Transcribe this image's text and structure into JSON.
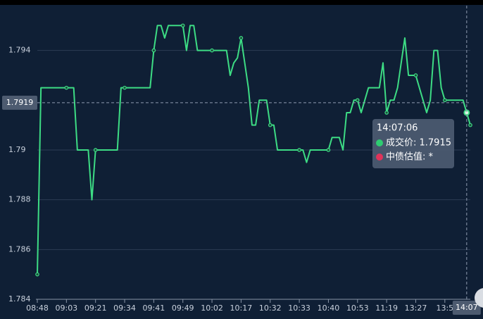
{
  "chart_data": {
    "type": "line",
    "categories": [
      "08:48",
      null,
      null,
      null,
      null,
      null,
      null,
      null,
      "09:03",
      null,
      null,
      null,
      null,
      null,
      null,
      null,
      "09:21",
      null,
      null,
      null,
      null,
      null,
      null,
      null,
      "09:34",
      null,
      null,
      null,
      null,
      null,
      null,
      null,
      "09:41",
      null,
      null,
      null,
      null,
      null,
      null,
      null,
      "09:49",
      null,
      null,
      null,
      null,
      null,
      null,
      null,
      "10:02",
      null,
      null,
      null,
      null,
      null,
      null,
      null,
      "10:17",
      null,
      null,
      null,
      null,
      null,
      null,
      null,
      "10:32",
      null,
      null,
      null,
      null,
      null,
      null,
      null,
      "10:33",
      null,
      null,
      null,
      null,
      null,
      null,
      null,
      "10:40",
      null,
      null,
      null,
      null,
      null,
      null,
      null,
      "10:53",
      null,
      null,
      null,
      null,
      null,
      null,
      null,
      "11:19",
      null,
      null,
      null,
      null,
      null,
      null,
      null,
      "13:27",
      null,
      null,
      null,
      null,
      null,
      null,
      null,
      "13:5",
      null,
      null,
      null,
      null,
      null,
      "14:07",
      null
    ],
    "series": [
      {
        "color": "#3ddc84",
        "values": [
          1.785,
          1.7925,
          1.7925,
          1.7925,
          1.7925,
          1.7925,
          1.7925,
          1.7925,
          1.7925,
          1.7925,
          1.7925,
          1.79,
          1.79,
          1.79,
          1.79,
          1.788,
          1.79,
          1.79,
          1.79,
          1.79,
          1.79,
          1.79,
          1.79,
          1.7925,
          1.7925,
          1.7925,
          1.7925,
          1.7925,
          1.7925,
          1.7925,
          1.7925,
          1.7925,
          1.794,
          1.795,
          1.795,
          1.7945,
          1.795,
          1.795,
          1.795,
          1.795,
          1.795,
          1.794,
          1.795,
          1.795,
          1.794,
          1.794,
          1.794,
          1.794,
          1.794,
          1.794,
          1.794,
          1.794,
          1.794,
          1.793,
          1.7935,
          1.7937,
          1.7945,
          1.7935,
          1.7925,
          1.791,
          1.791,
          1.792,
          1.792,
          1.792,
          1.791,
          1.791,
          1.79,
          1.79,
          1.79,
          1.79,
          1.79,
          1.79,
          1.79,
          1.79,
          1.7895,
          1.79,
          1.79,
          1.79,
          1.79,
          1.79,
          1.79,
          1.7905,
          1.7905,
          1.7905,
          1.79,
          1.7915,
          1.7915,
          1.792,
          1.792,
          1.7915,
          1.792,
          1.7925,
          1.7925,
          1.7925,
          1.7925,
          1.7935,
          1.7915,
          1.792,
          1.792,
          1.7925,
          1.7935,
          1.7945,
          1.793,
          1.793,
          1.793,
          1.7925,
          1.792,
          1.7915,
          1.792,
          1.794,
          1.794,
          1.7925,
          1.792,
          1.792,
          1.792,
          1.792,
          1.792,
          1.792,
          1.7915,
          1.791
        ]
      }
    ],
    "ylim": [
      1.784,
      1.7958
    ],
    "yticks": [
      1.784,
      1.786,
      1.788,
      1.79,
      1.794
    ],
    "grid": true,
    "pointer_y": 1.7919,
    "tooltip": {
      "time": "14:07:06",
      "items": [
        {
          "label": "成交价: 1.7915",
          "color": "#2ecc71"
        },
        {
          "label": "中债估值: *",
          "color": "#e0335a"
        }
      ]
    }
  }
}
